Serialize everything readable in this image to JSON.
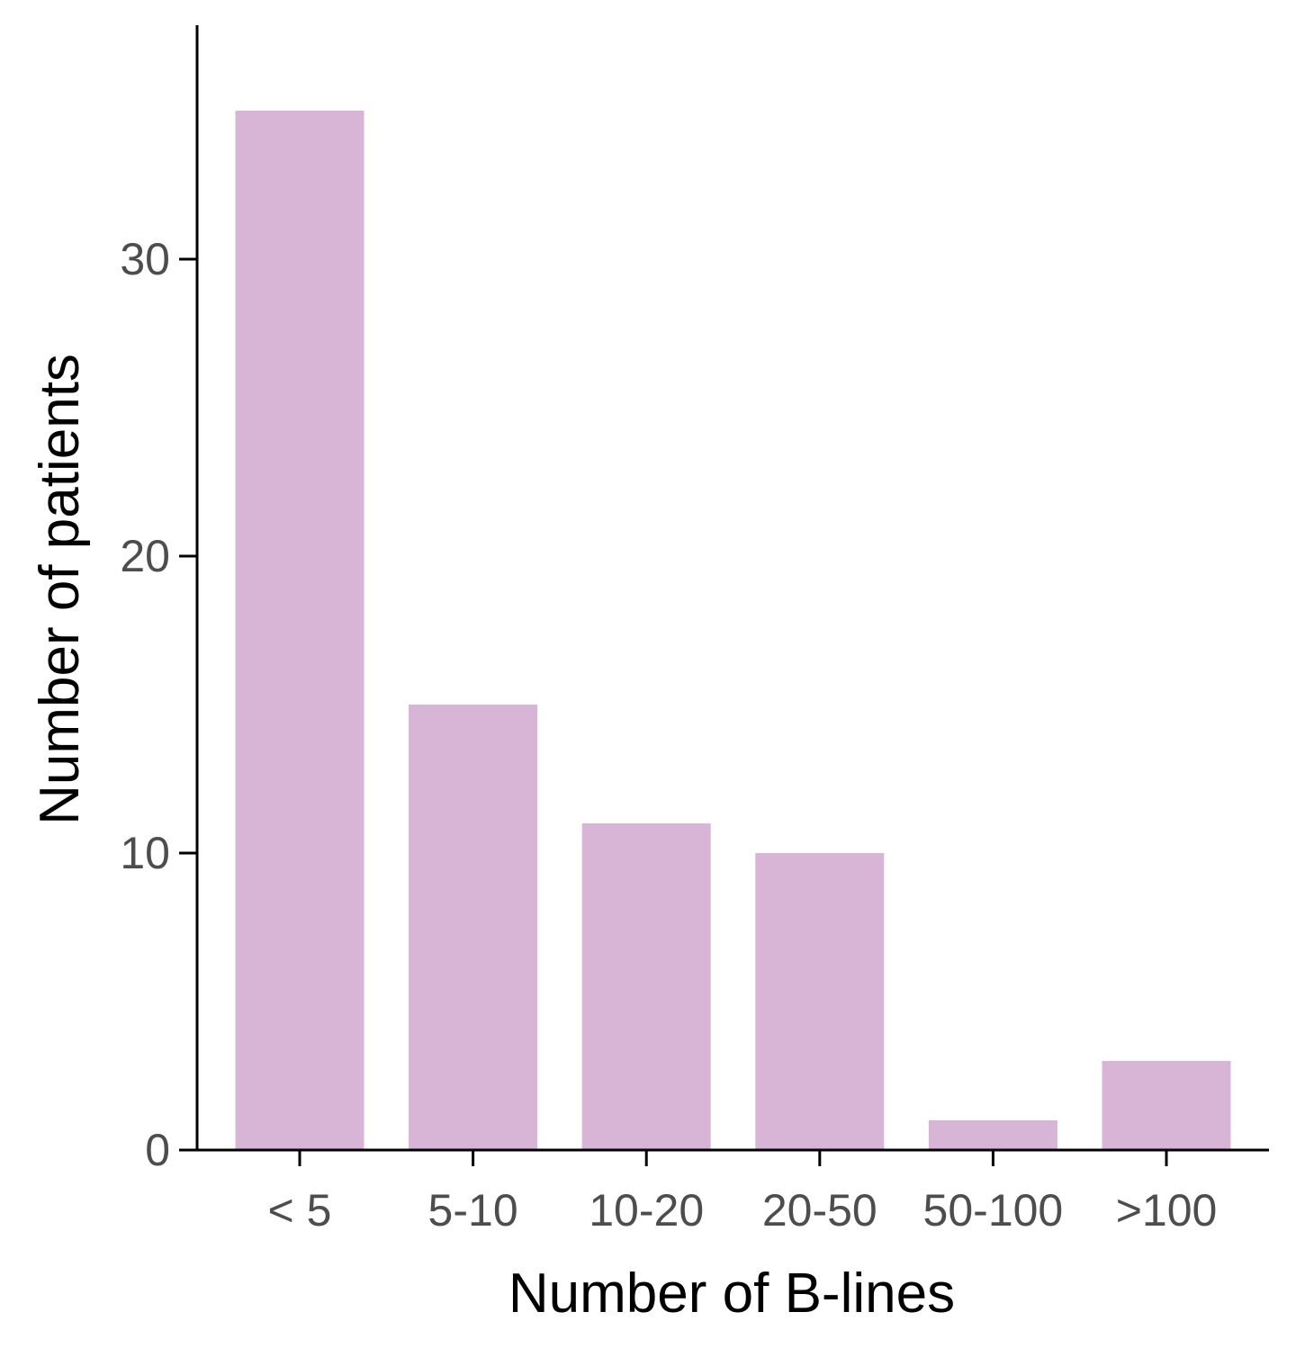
{
  "chart_data": {
    "type": "bar",
    "categories": [
      "< 5",
      "5-10",
      "10-20",
      "20-50",
      "50-100",
      ">100"
    ],
    "values": [
      35,
      15,
      11,
      10,
      1,
      3
    ],
    "xlabel": "Number of B-lines",
    "ylabel": "Number of patients",
    "ylim": [
      0,
      38
    ],
    "yticks": [
      0,
      10,
      20,
      30
    ],
    "grid": false,
    "legend": "none",
    "colors": {
      "bar": "#d8b4d6",
      "axis": "#000000",
      "tick_text": "#4d4d4d"
    }
  }
}
